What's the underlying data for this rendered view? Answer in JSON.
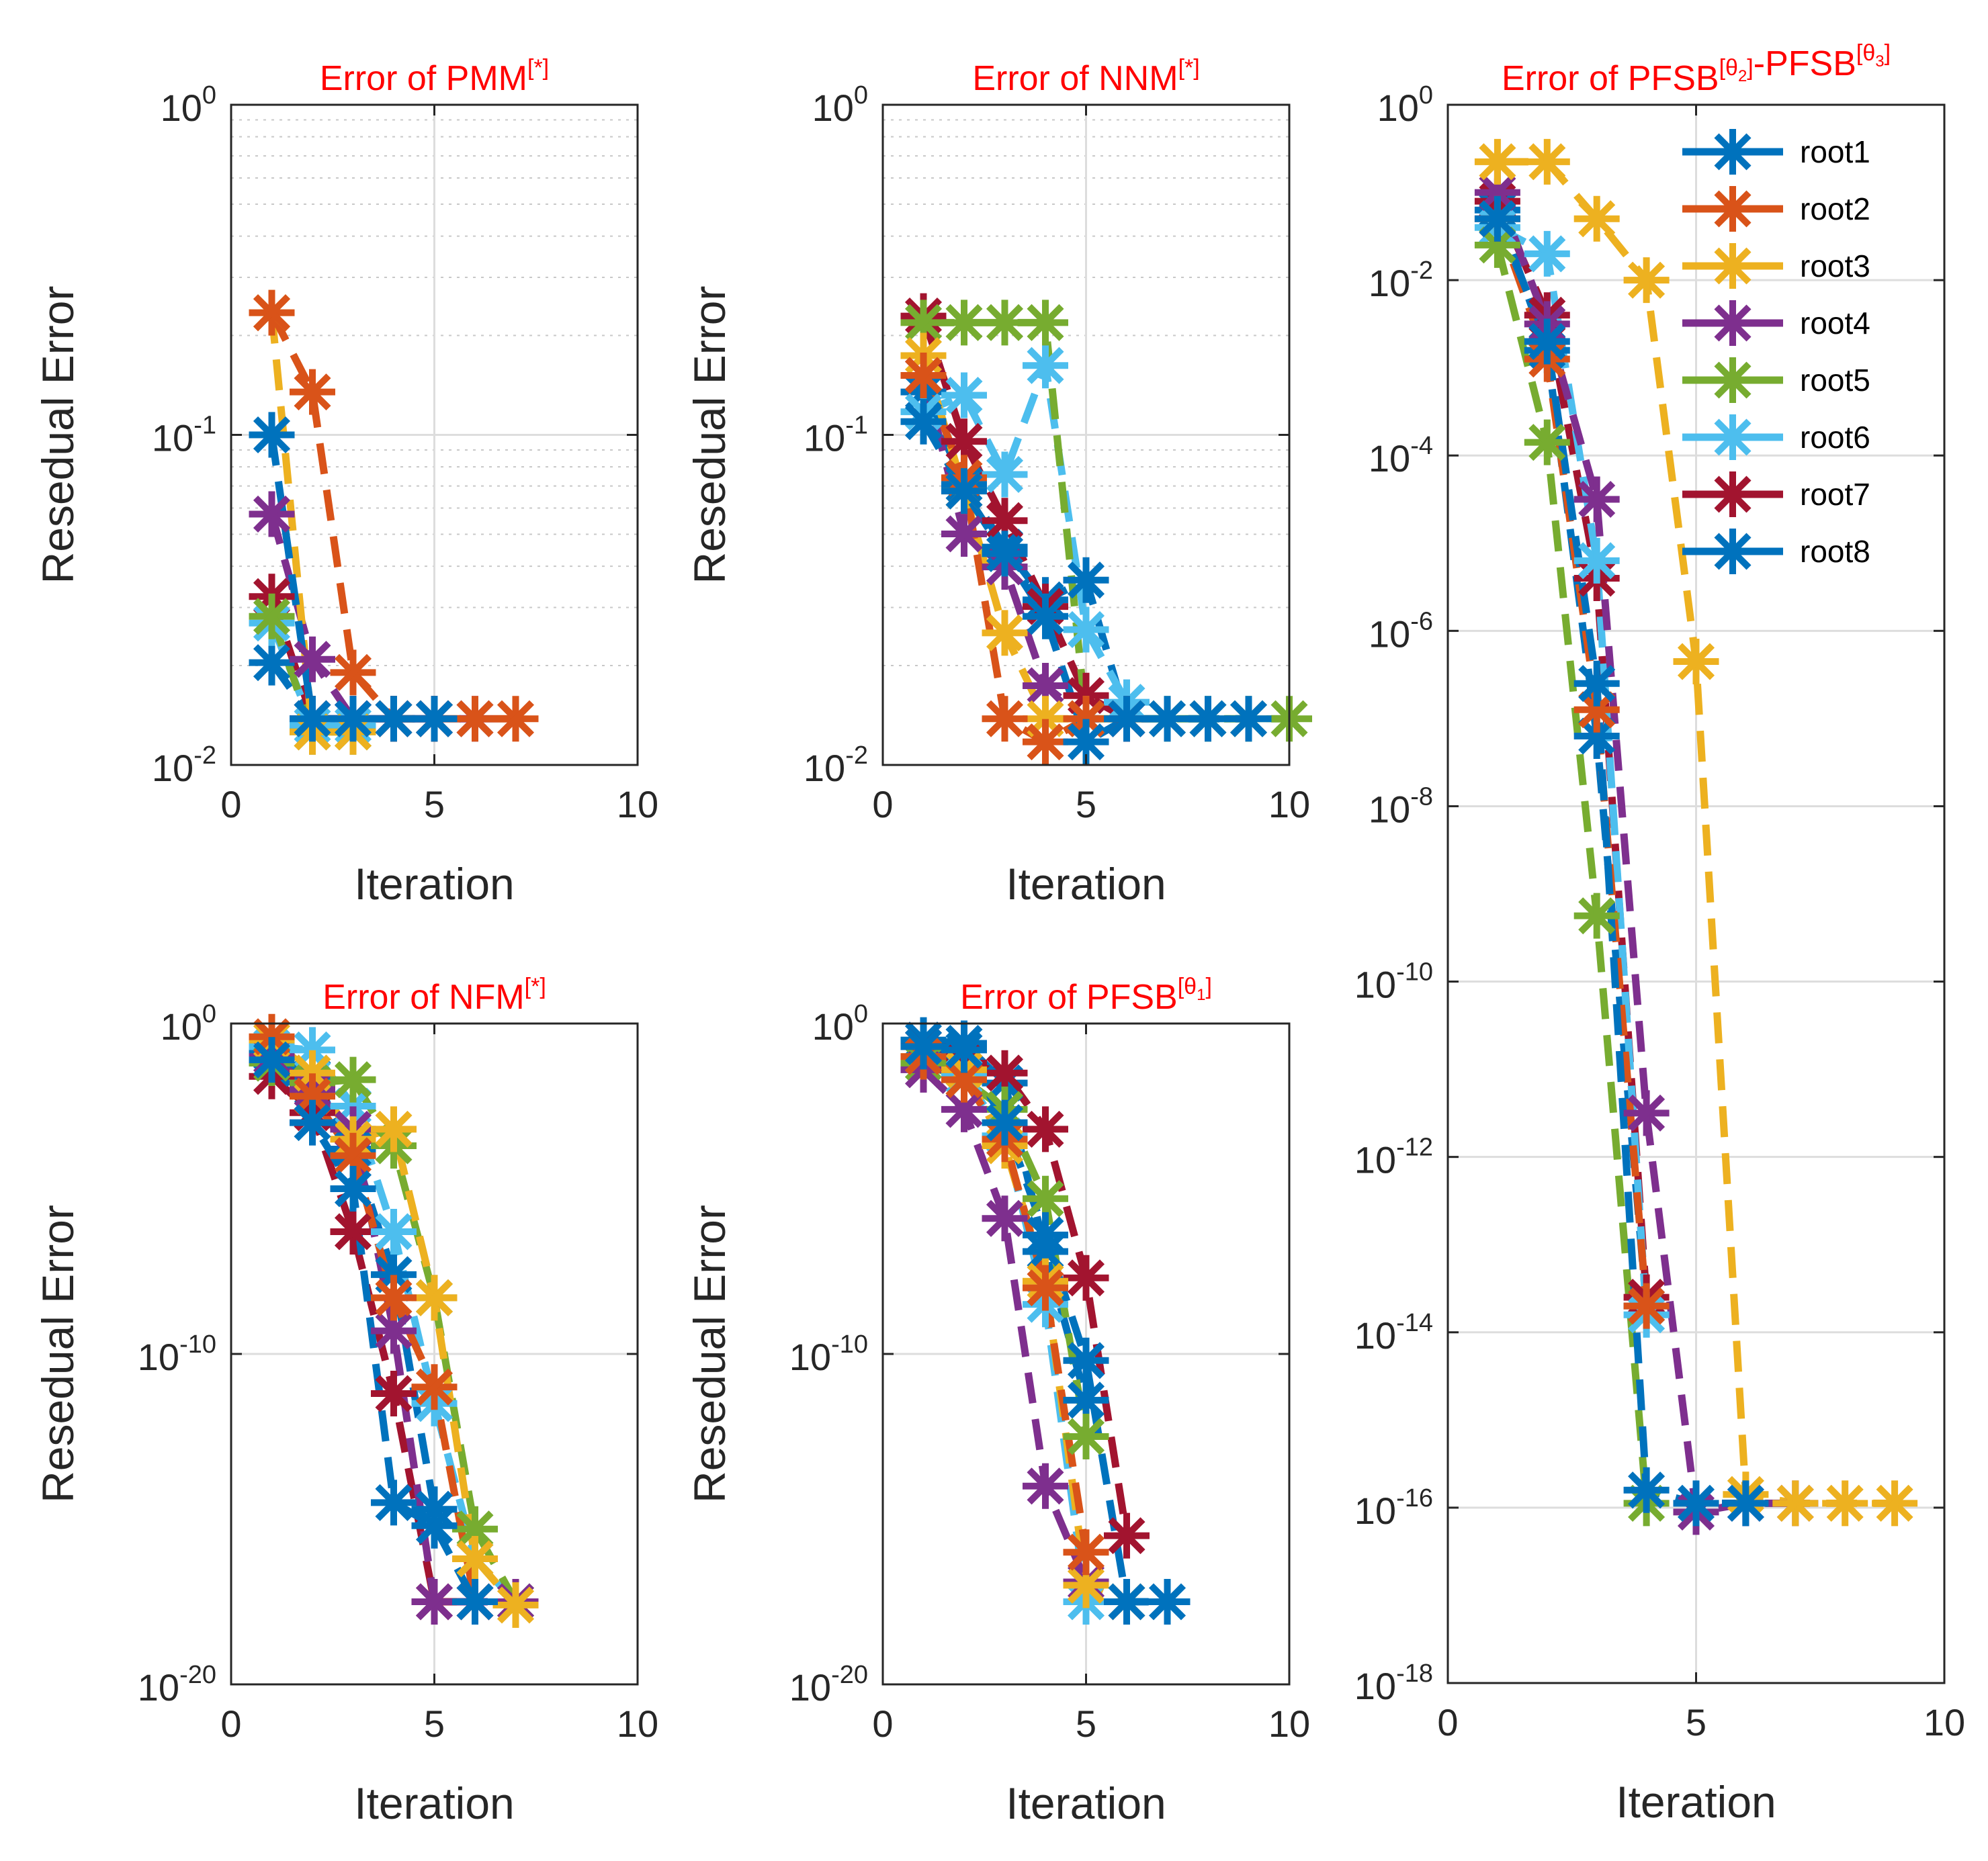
{
  "chart_data": [
    {
      "id": "pmm",
      "type": "line",
      "title": "Error of PMM",
      "title_suffix": "[*]",
      "xlabel": "Iteration",
      "ylabel": "Resedual Error",
      "yscale": "log",
      "xlim": [
        0,
        10
      ],
      "ylim_exp": [
        -2,
        0
      ],
      "xticks": [
        "0",
        "5",
        "10"
      ],
      "yticks": [
        {
          "base": "10",
          "exp": "-2"
        },
        {
          "base": "10",
          "exp": "-1"
        },
        {
          "base": "10",
          "exp": "0"
        }
      ],
      "minor_grid": true,
      "series": [
        {
          "name": "root1",
          "x": [
            1,
            2,
            3,
            4,
            5
          ],
          "y_exp": [
            -1.0,
            -1.86,
            -1.86,
            -1.86,
            -1.86
          ]
        },
        {
          "name": "root2",
          "x": [
            1,
            2,
            3,
            4,
            5,
            6,
            7
          ],
          "y_exp": [
            -0.63,
            -0.87,
            -1.72,
            -1.86,
            -1.86,
            -1.86,
            -1.86
          ]
        },
        {
          "name": "root3",
          "x": [
            1,
            2,
            3
          ],
          "y_exp": [
            -0.63,
            -1.9,
            -1.9
          ]
        },
        {
          "name": "root4",
          "x": [
            1,
            2,
            3,
            4,
            5,
            6
          ],
          "y_exp": [
            -1.24,
            -1.68,
            -1.86,
            -1.86,
            -1.86,
            -1.86
          ]
        },
        {
          "name": "root5",
          "x": [
            1,
            2,
            3
          ],
          "y_exp": [
            -1.55,
            -1.9,
            -1.9
          ]
        },
        {
          "name": "root6",
          "x": [
            1,
            2,
            3
          ],
          "y_exp": [
            -1.57,
            -1.88,
            -1.88
          ]
        },
        {
          "name": "root7",
          "x": [
            1,
            2,
            3
          ],
          "y_exp": [
            -1.49,
            -1.86,
            -1.86
          ]
        },
        {
          "name": "root8",
          "x": [
            1,
            2,
            3,
            4,
            5
          ],
          "y_exp": [
            -1.69,
            -1.86,
            -1.86,
            -1.86,
            -1.86
          ]
        }
      ]
    },
    {
      "id": "nnm",
      "type": "line",
      "title": "Error of NNM",
      "title_suffix": "[*]",
      "xlabel": "Iteration",
      "ylabel": "Resedual Error",
      "yscale": "log",
      "xlim": [
        0,
        10
      ],
      "ylim_exp": [
        -2,
        0
      ],
      "xticks": [
        "0",
        "5",
        "10"
      ],
      "yticks": [
        {
          "base": "10",
          "exp": "-2"
        },
        {
          "base": "10",
          "exp": "-1"
        },
        {
          "base": "10",
          "exp": "0"
        }
      ],
      "minor_grid": true,
      "series": [
        {
          "name": "root1",
          "x": [
            1,
            2,
            3,
            4,
            5,
            6,
            7,
            8,
            9
          ],
          "y_exp": [
            -0.96,
            -1.17,
            -1.36,
            -1.55,
            -1.93,
            -1.86,
            -1.86,
            -1.86,
            -1.86
          ]
        },
        {
          "name": "root2",
          "x": [
            1,
            2,
            3,
            4,
            5
          ],
          "y_exp": [
            -0.82,
            -1.13,
            -1.86,
            -1.93,
            -1.86
          ]
        },
        {
          "name": "root3",
          "x": [
            1,
            2,
            3,
            4,
            5
          ],
          "y_exp": [
            -0.76,
            -1.17,
            -1.6,
            -1.86,
            -1.86
          ]
        },
        {
          "name": "root4",
          "x": [
            1,
            2,
            3,
            4,
            5,
            6
          ],
          "y_exp": [
            -0.82,
            -1.3,
            -1.4,
            -1.76,
            -1.86,
            -1.86
          ]
        },
        {
          "name": "root5",
          "x": [
            1,
            2,
            3,
            4,
            5,
            6,
            7,
            8,
            9,
            10
          ],
          "y_exp": [
            -0.66,
            -0.66,
            -0.66,
            -0.66,
            -1.86,
            -1.86,
            -1.86,
            -1.86,
            -1.86,
            -1.86
          ]
        },
        {
          "name": "root6",
          "x": [
            1,
            2,
            3,
            4,
            5,
            6
          ],
          "y_exp": [
            -0.93,
            -0.88,
            -1.12,
            -0.79,
            -1.59,
            -1.81
          ]
        },
        {
          "name": "root7",
          "x": [
            1,
            2,
            3,
            4,
            5,
            6
          ],
          "y_exp": [
            -0.64,
            -1.02,
            -1.26,
            -1.52,
            -1.79,
            -1.86
          ]
        },
        {
          "name": "root8",
          "x": [
            1,
            2,
            3,
            4,
            5,
            6
          ],
          "y_exp": [
            -0.87,
            -1.15,
            -1.34,
            -1.5,
            -1.44,
            -1.86
          ]
        }
      ]
    },
    {
      "id": "pfsb23",
      "type": "line",
      "title": "Error of PFSB",
      "title_mid": "-PFSB",
      "title_sup1": "[θ2]",
      "title_sup2": "[θ3]",
      "xlabel": "Iteration",
      "ylabel": "",
      "yscale": "log",
      "xlim": [
        0,
        10
      ],
      "ylim_exp": [
        -18,
        0
      ],
      "xticks": [
        "0",
        "5",
        "10"
      ],
      "yticks": [
        {
          "base": "10",
          "exp": "-18"
        },
        {
          "base": "10",
          "exp": "-16"
        },
        {
          "base": "10",
          "exp": "-14"
        },
        {
          "base": "10",
          "exp": "-12"
        },
        {
          "base": "10",
          "exp": "-10"
        },
        {
          "base": "10",
          "exp": "-8"
        },
        {
          "base": "10",
          "exp": "-6"
        },
        {
          "base": "10",
          "exp": "-4"
        },
        {
          "base": "10",
          "exp": "-2"
        },
        {
          "base": "10",
          "exp": "0"
        }
      ],
      "minor_grid": false,
      "legend": "top-right",
      "series": [
        {
          "name": "root1",
          "x": [
            1,
            2,
            3,
            4,
            5,
            6
          ],
          "y_exp": [
            -1.3,
            -2.7,
            -6.6,
            -15.8,
            -15.95,
            -15.95
          ]
        },
        {
          "name": "root2",
          "x": [
            1,
            2,
            3,
            4
          ],
          "y_exp": [
            -1.3,
            -2.9,
            -6.9,
            -13.7
          ]
        },
        {
          "name": "root3",
          "x": [
            1,
            2,
            3,
            4,
            5,
            6,
            7,
            8,
            9
          ],
          "y_exp": [
            -0.65,
            -0.65,
            -1.3,
            -2.0,
            -6.35,
            -15.85,
            -15.95,
            -15.95,
            -15.95
          ]
        },
        {
          "name": "root4",
          "x": [
            1,
            2,
            3,
            4,
            5,
            6,
            7
          ],
          "y_exp": [
            -1.0,
            -2.5,
            -4.5,
            -11.5,
            -16.05,
            -15.95,
            -15.95
          ]
        },
        {
          "name": "root5",
          "x": [
            1,
            2,
            3,
            4
          ],
          "y_exp": [
            -1.6,
            -3.85,
            -9.25,
            -15.95
          ]
        },
        {
          "name": "root6",
          "x": [
            1,
            2,
            3,
            4
          ],
          "y_exp": [
            -1.4,
            -1.7,
            -5.2,
            -13.8
          ]
        },
        {
          "name": "root7",
          "x": [
            1,
            2,
            3,
            4
          ],
          "y_exp": [
            -1.1,
            -2.4,
            -5.4,
            -13.6
          ]
        },
        {
          "name": "root8",
          "x": [
            1,
            2,
            3,
            4
          ],
          "y_exp": [
            -1.2,
            -2.8,
            -7.2,
            -13.7
          ]
        }
      ]
    },
    {
      "id": "nfm",
      "type": "line",
      "title": "Error of NFM",
      "title_suffix": "[*]",
      "xlabel": "Iteration",
      "ylabel": "Resedual Error",
      "yscale": "log",
      "xlim": [
        0,
        10
      ],
      "ylim_exp": [
        -20,
        0
      ],
      "xticks": [
        "0",
        "5",
        "10"
      ],
      "yticks": [
        {
          "base": "10",
          "exp": "-20"
        },
        {
          "base": "10",
          "exp": "-10"
        },
        {
          "base": "10",
          "exp": "0"
        }
      ],
      "minor_grid": false,
      "series": [
        {
          "name": "root1",
          "x": [
            1,
            2,
            3,
            4,
            5,
            6
          ],
          "y_exp": [
            -1.1,
            -3.0,
            -5.0,
            -14.5,
            -15.2,
            -17.5
          ]
        },
        {
          "name": "root2",
          "x": [
            1,
            2,
            3,
            4,
            5,
            6
          ],
          "y_exp": [
            -0.4,
            -2.2,
            -4.0,
            -8.3,
            -11.0,
            -17.5
          ]
        },
        {
          "name": "root3",
          "x": [
            1,
            2,
            3,
            4,
            5,
            6,
            7
          ],
          "y_exp": [
            -0.5,
            -1.5,
            -3.5,
            -3.2,
            -8.3,
            -16.2,
            -17.6
          ]
        },
        {
          "name": "root4",
          "x": [
            1,
            2,
            3,
            4,
            5,
            6,
            7
          ],
          "y_exp": [
            -1.0,
            -2.0,
            -3.2,
            -9.3,
            -17.5,
            -17.5,
            -17.5
          ]
        },
        {
          "name": "root5",
          "x": [
            1,
            2,
            3,
            4,
            5,
            6,
            7
          ],
          "y_exp": [
            -1.2,
            -1.8,
            -1.7,
            -3.7,
            -8.3,
            -15.3,
            -17.5
          ]
        },
        {
          "name": "root6",
          "x": [
            1,
            2,
            3,
            4,
            5,
            6,
            7
          ],
          "y_exp": [
            -0.7,
            -0.8,
            -2.5,
            -6.3,
            -11.5,
            -16.2,
            -17.5
          ]
        },
        {
          "name": "root7",
          "x": [
            1,
            2,
            3,
            4,
            5,
            6
          ],
          "y_exp": [
            -1.6,
            -2.7,
            -6.3,
            -11.2,
            -17.5,
            -17.5
          ]
        },
        {
          "name": "root8",
          "x": [
            1,
            2,
            3,
            4,
            5
          ],
          "y_exp": [
            -0.9,
            -1.6,
            -3.8,
            -7.6,
            -14.7
          ]
        }
      ]
    },
    {
      "id": "pfsb1",
      "type": "line",
      "title": "Error of PFSB",
      "title_sup1": "[θ1]",
      "xlabel": "Iteration",
      "ylabel": "Resedual Error",
      "yscale": "log",
      "xlim": [
        0,
        10
      ],
      "ylim_exp": [
        -20,
        0
      ],
      "xticks": [
        "0",
        "5",
        "10"
      ],
      "yticks": [
        {
          "base": "10",
          "exp": "-20"
        },
        {
          "base": "10",
          "exp": "-10"
        },
        {
          "base": "10",
          "exp": "0"
        }
      ],
      "minor_grid": false,
      "series": [
        {
          "name": "root1",
          "x": [
            1,
            2,
            3,
            4,
            5,
            6,
            7
          ],
          "y_exp": [
            -0.7,
            -0.8,
            -3.0,
            -6.4,
            -10.2,
            -17.5,
            -17.5
          ]
        },
        {
          "name": "root2",
          "x": [
            1,
            2,
            3,
            4,
            5
          ],
          "y_exp": [
            -1.0,
            -1.7,
            -3.5,
            -8.0,
            -16.0
          ]
        },
        {
          "name": "root3",
          "x": [
            1,
            2,
            3,
            4,
            5,
            6
          ],
          "y_exp": [
            -1.0,
            -1.4,
            -3.7,
            -7.8,
            -17.0,
            -17.5
          ]
        },
        {
          "name": "root4",
          "x": [
            1,
            2,
            3,
            4,
            5
          ],
          "y_exp": [
            -1.4,
            -2.6,
            -5.9,
            -14.0,
            -16.9
          ]
        },
        {
          "name": "root5",
          "x": [
            1,
            2,
            3,
            4,
            5
          ],
          "y_exp": [
            -1.2,
            -1.7,
            -2.6,
            -5.3,
            -12.5
          ]
        },
        {
          "name": "root6",
          "x": [
            1,
            2,
            3,
            4,
            5
          ],
          "y_exp": [
            -1.2,
            -1.6,
            -3.4,
            -8.5,
            -17.5
          ]
        },
        {
          "name": "root7",
          "x": [
            1,
            2,
            3,
            4,
            5,
            6
          ],
          "y_exp": [
            -0.7,
            -1.2,
            -1.5,
            -3.2,
            -7.7,
            -15.5
          ]
        },
        {
          "name": "root8",
          "x": [
            1,
            2,
            3,
            4,
            5
          ],
          "y_exp": [
            -0.5,
            -0.6,
            -1.8,
            -6.9,
            -11.4
          ]
        }
      ]
    }
  ],
  "legend_entries": [
    "root1",
    "root2",
    "root3",
    "root4",
    "root5",
    "root6",
    "root7",
    "root8"
  ],
  "series_colors": {
    "root1": "#0072BD",
    "root2": "#D95319",
    "root3": "#EDB120",
    "root4": "#7E2F8E",
    "root5": "#77AC30",
    "root6": "#4DBEEE",
    "root7": "#A2142F",
    "root8": "#0072BD"
  },
  "colors": {
    "title": "#ff0000",
    "axis": "#262626",
    "grid": "#dddddd"
  }
}
